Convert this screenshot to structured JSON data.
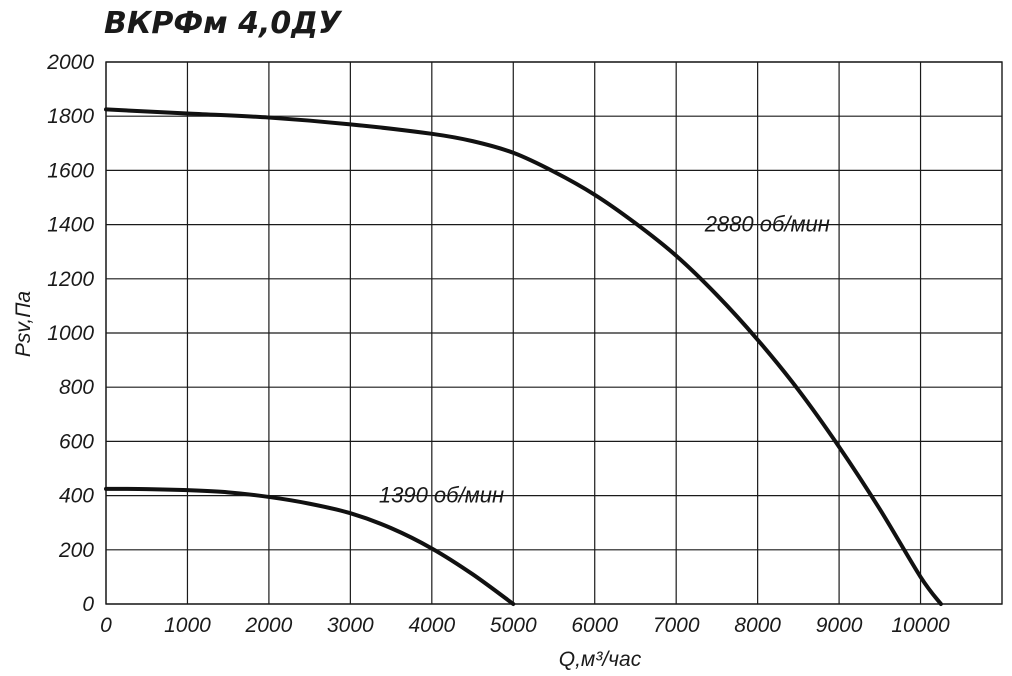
{
  "chart_data": {
    "type": "line",
    "title": "ВКРФм 4,0ДУ",
    "xlabel": "Q,м³/час",
    "ylabel": "Psv,Па",
    "xlim": [
      0,
      11000
    ],
    "ylim": [
      0,
      2000
    ],
    "xticks": [
      0,
      1000,
      2000,
      3000,
      4000,
      5000,
      6000,
      7000,
      8000,
      9000,
      10000
    ],
    "yticks": [
      0,
      200,
      400,
      600,
      800,
      1000,
      1200,
      1400,
      1600,
      1800,
      2000
    ],
    "grid": true,
    "series": [
      {
        "name": "2880 об/мин",
        "x": [
          0,
          1000,
          2000,
          3000,
          4000,
          4500,
          5000,
          5500,
          6000,
          6500,
          7000,
          7500,
          8000,
          8500,
          9000,
          9500,
          10000,
          10250
        ],
        "y": [
          1825,
          1810,
          1795,
          1770,
          1735,
          1708,
          1665,
          1595,
          1510,
          1405,
          1285,
          1140,
          975,
          790,
          580,
          350,
          100,
          0
        ]
      },
      {
        "name": "1390 об/мин",
        "x": [
          0,
          500,
          1000,
          1500,
          2000,
          2500,
          3000,
          3500,
          4000,
          4500,
          5000
        ],
        "y": [
          425,
          424,
          420,
          412,
          395,
          370,
          335,
          280,
          205,
          110,
          0
        ]
      }
    ],
    "annotations": [
      {
        "text": "2880 об/мин",
        "x": 7350,
        "y": 1400
      },
      {
        "text": "1390 об/мин",
        "x": 3350,
        "y": 400
      }
    ]
  }
}
